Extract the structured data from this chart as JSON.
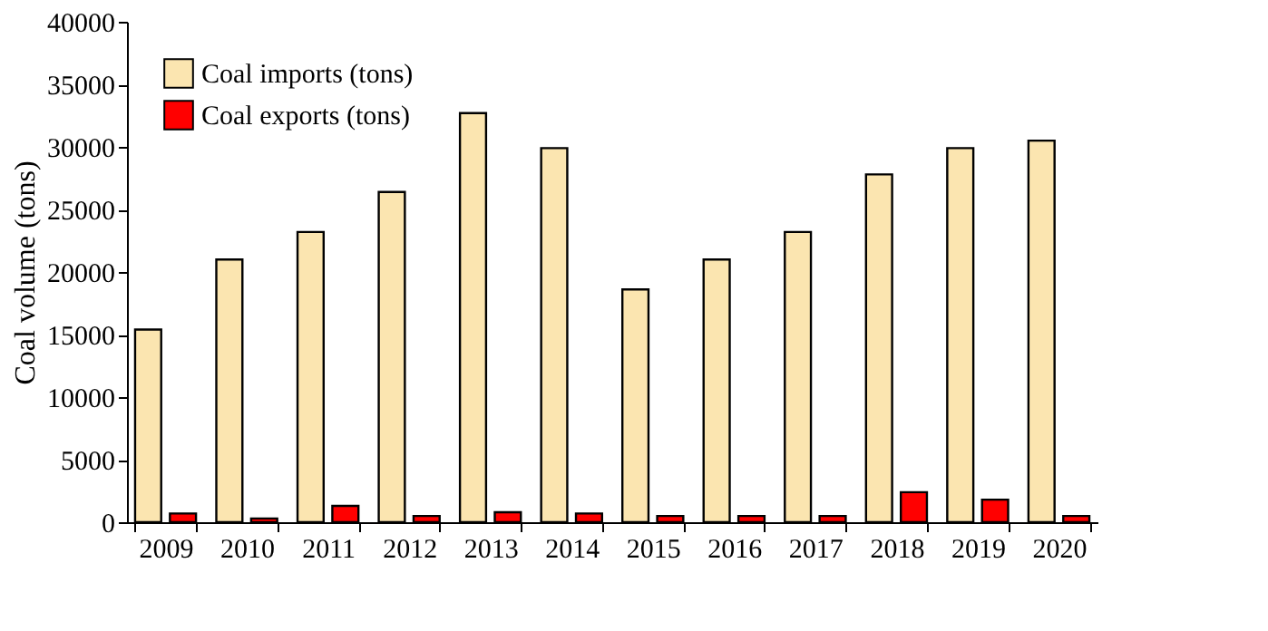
{
  "chart_data": {
    "type": "bar",
    "ylabel": "Coal volume (tons)",
    "categories": [
      "2009",
      "2010",
      "2011",
      "2012",
      "2013",
      "2014",
      "2015",
      "2016",
      "2017",
      "2018",
      "2019",
      "2020"
    ],
    "series": [
      {
        "name": "Coal imports (tons)",
        "color": "#fbe5b0",
        "values": [
          15400,
          21000,
          23200,
          26400,
          32700,
          29900,
          18600,
          21000,
          23200,
          27800,
          29900,
          30500
        ]
      },
      {
        "name": "Coal exports (tons)",
        "color": "#ff0000",
        "values": [
          700,
          300,
          1300,
          500,
          800,
          700,
          500,
          500,
          500,
          2400,
          1800,
          500
        ]
      }
    ],
    "ylim": [
      0,
      40000
    ],
    "yticks": [
      0,
      5000,
      10000,
      15000,
      20000,
      25000,
      30000,
      35000,
      40000
    ],
    "grid": false,
    "legend": "top left"
  }
}
